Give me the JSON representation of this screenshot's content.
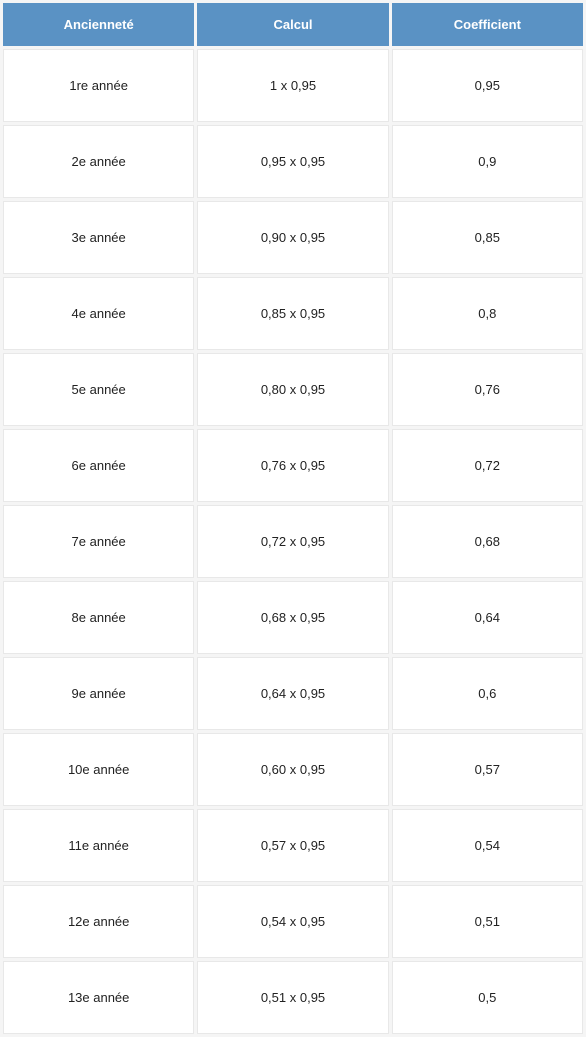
{
  "table": {
    "header_bg": "#5a92c4",
    "header_text_color": "#ffffff",
    "cell_bg": "#ffffff",
    "cell_text_color": "#222222",
    "gap_bg": "#f5f5f5",
    "border_color": "#e8e8e8",
    "header_fontsize": 13,
    "cell_fontsize": 13,
    "columns": [
      "Ancienneté",
      "Calcul",
      "Coefficient"
    ],
    "rows": [
      [
        "1re année",
        "1 x 0,95",
        "0,95"
      ],
      [
        "2e année",
        "0,95 x 0,95",
        "0,9"
      ],
      [
        "3e année",
        "0,90 x 0,95",
        "0,85"
      ],
      [
        "4e année",
        "0,85 x 0,95",
        "0,8"
      ],
      [
        "5e année",
        "0,80 x 0,95",
        "0,76"
      ],
      [
        "6e année",
        "0,76 x 0,95",
        "0,72"
      ],
      [
        "7e année",
        "0,72 x 0,95",
        "0,68"
      ],
      [
        "8e année",
        "0,68 x 0,95",
        "0,64"
      ],
      [
        "9e année",
        "0,64 x 0,95",
        "0,6"
      ],
      [
        "10e année",
        "0,60 x 0,95",
        "0,57"
      ],
      [
        "11e année",
        "0,57 x 0,95",
        "0,54"
      ],
      [
        "12e année",
        "0,54 x 0,95",
        "0,51"
      ],
      [
        "13e année",
        "0,51 x 0,95",
        "0,5"
      ]
    ]
  }
}
